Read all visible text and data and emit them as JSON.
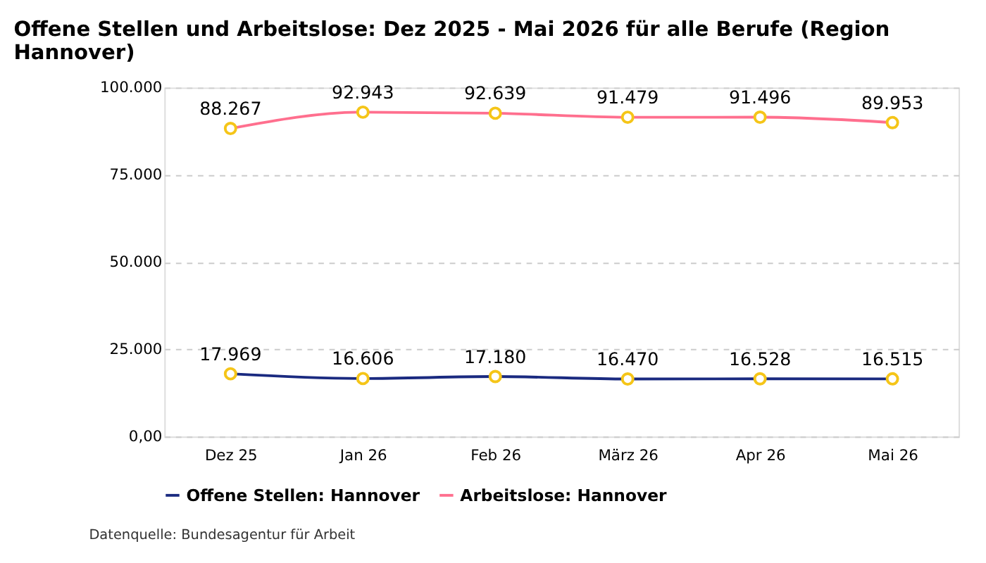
{
  "chart_data": {
    "type": "line",
    "title": "Offene Stellen und Arbeitslose: Dez 2025 - Mai 2026 für alle Berufe (Region Hannover)",
    "categories": [
      "Dez 25",
      "Jan 26",
      "Feb 26",
      "März 26",
      "Apr 26",
      "Mai 26"
    ],
    "series": [
      {
        "name": "Offene Stellen: Hannover",
        "color": "#1a2a80",
        "values": [
          17969,
          16606,
          17180,
          16470,
          16528,
          16515
        ],
        "value_labels": [
          "17.969",
          "16.606",
          "17.180",
          "16.470",
          "16.528",
          "16.515"
        ]
      },
      {
        "name": "Arbeitslose: Hannover",
        "color": "#ff6f8e",
        "values": [
          88267,
          92943,
          92639,
          91479,
          91496,
          89953
        ],
        "value_labels": [
          "88.267",
          "92.943",
          "92.639",
          "91.479",
          "91.496",
          "89.953"
        ]
      }
    ],
    "ylim": [
      0,
      100000
    ],
    "yticks": [
      {
        "value": 0,
        "label": "0,00"
      },
      {
        "value": 25000,
        "label": "25.000"
      },
      {
        "value": 50000,
        "label": "50.000"
      },
      {
        "value": 75000,
        "label": "75.000"
      },
      {
        "value": 100000,
        "label": "100.000"
      }
    ],
    "grid": "y",
    "legend": "bottom",
    "marker": "circle",
    "line_style": "solid",
    "annotations": [
      "Datenquelle: Bundesagentur für Arbeit"
    ]
  }
}
